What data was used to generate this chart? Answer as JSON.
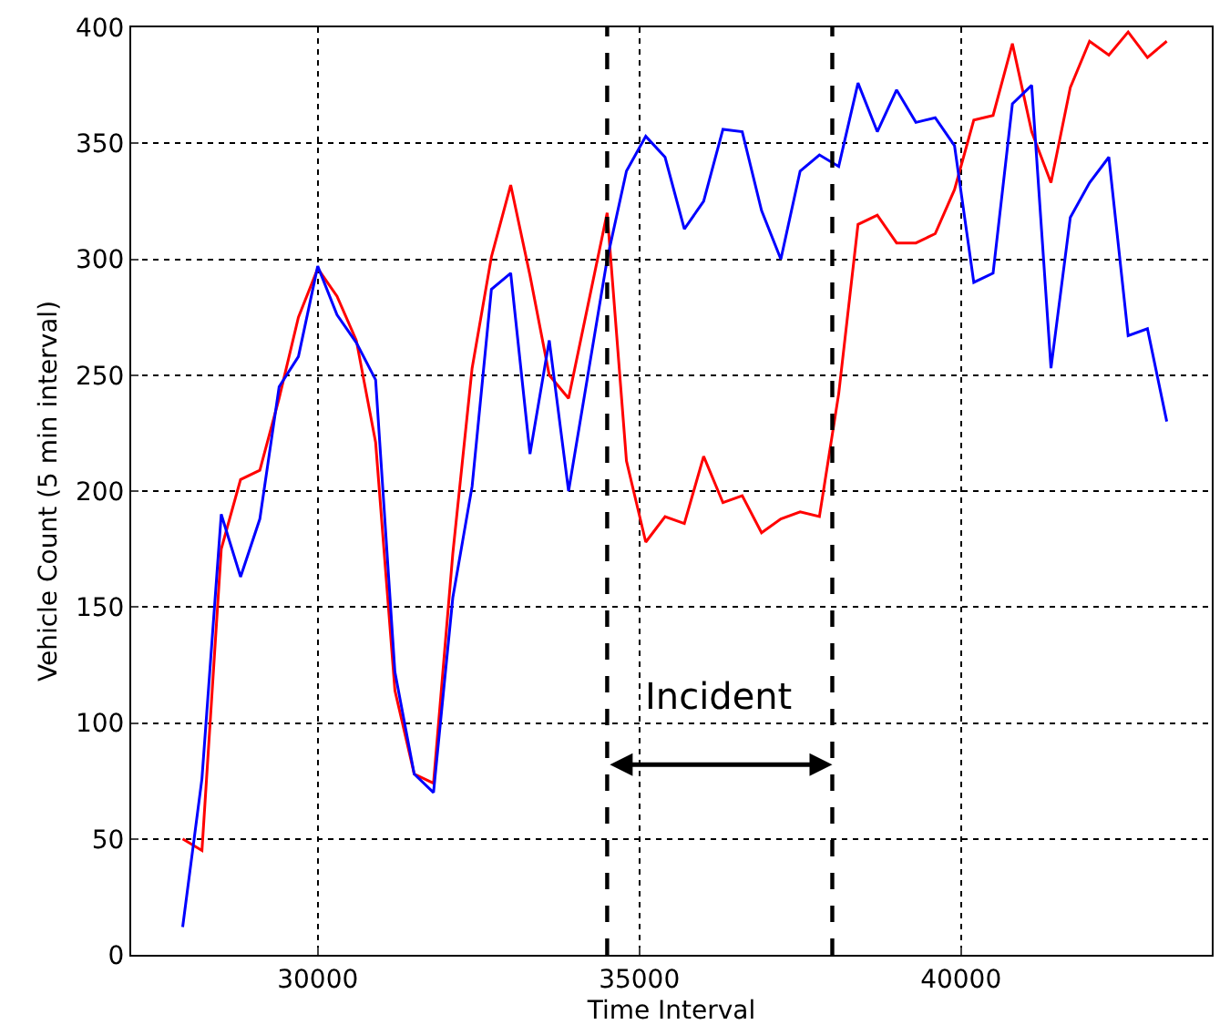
{
  "chart_data": {
    "type": "line",
    "xlabel": "Time Interval",
    "ylabel": "Vehicle Count (5 min interval)",
    "x": [
      27900,
      28200,
      28500,
      28800,
      29100,
      29400,
      29700,
      30000,
      30300,
      30600,
      30900,
      31200,
      31500,
      31800,
      32100,
      32400,
      32700,
      33000,
      33300,
      33600,
      33900,
      34200,
      34500,
      34800,
      35100,
      35400,
      35700,
      36000,
      36300,
      36600,
      36900,
      37200,
      37500,
      37800,
      38100,
      38400,
      38700,
      39000,
      39300,
      39600,
      39900,
      40200,
      40500,
      40800,
      41100,
      41400,
      41700,
      42000,
      42300,
      42600,
      42900,
      43200
    ],
    "series": [
      {
        "color": "#ff0000",
        "values": [
          50,
          45,
          175,
          205,
          209,
          240,
          275,
          296,
          284,
          265,
          221,
          114,
          78,
          74,
          173,
          253,
          301,
          332,
          293,
          250,
          240,
          280,
          320,
          213,
          178,
          189,
          186,
          215,
          195,
          198,
          182,
          188,
          191,
          189,
          242,
          315,
          319,
          307,
          307,
          311,
          330,
          360,
          362,
          393,
          355,
          333,
          374,
          394,
          388,
          398,
          387,
          394
        ]
      },
      {
        "color": "#0000ff",
        "values": [
          12,
          76,
          190,
          163,
          188,
          245,
          258,
          297,
          276,
          264,
          248,
          122,
          78,
          70,
          154,
          202,
          287,
          294,
          216,
          265,
          200,
          250,
          300,
          338,
          353,
          344,
          313,
          325,
          356,
          355,
          321,
          300,
          338,
          345,
          340,
          376,
          355,
          373,
          359,
          361,
          349,
          290,
          294,
          367,
          375,
          253,
          318,
          333,
          344,
          267,
          270,
          230
        ]
      }
    ],
    "xlim": [
      27100,
      43900
    ],
    "xticks": [
      30000,
      35000,
      40000
    ],
    "ylim": [
      0,
      400
    ],
    "yticks": [
      0,
      50,
      100,
      150,
      200,
      250,
      300,
      350,
      400
    ],
    "grid": true,
    "marker": "none",
    "line_style": "solid",
    "ref_lines": [
      {
        "axis": "x",
        "value": 34500,
        "color": "#000000",
        "line_style": "dashed"
      },
      {
        "axis": "x",
        "value": 38000,
        "color": "#000000",
        "line_style": "dashed"
      }
    ],
    "annotations": [
      "Incident"
    ]
  }
}
